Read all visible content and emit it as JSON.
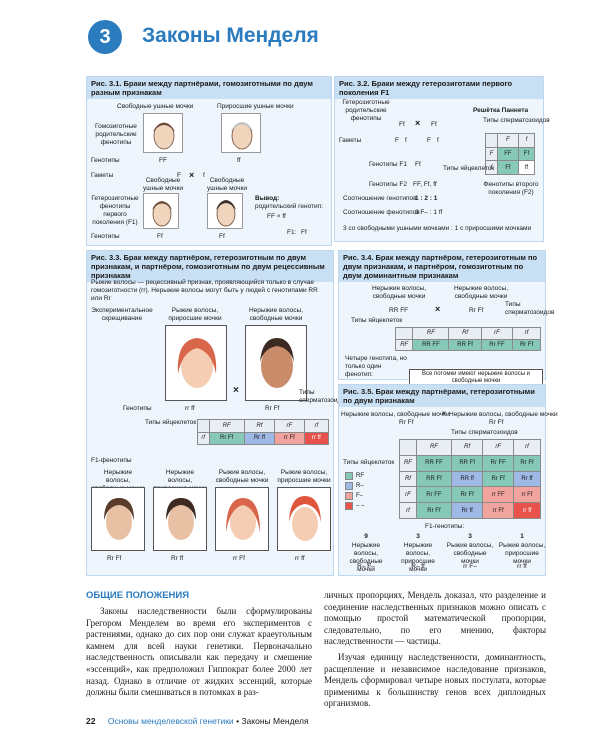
{
  "chapter": {
    "number": "3",
    "title": "Законы Менделя"
  },
  "fig31": {
    "title": "Рис. 3.1. Браки между партнёрами, гомозиготными по двум разным признакам",
    "free_lobes": "Свободные ушные мочки",
    "attached_lobes": "Приросшие ушные мочки",
    "homo_phenotypes": "Гомозиготные родительские фенотипы",
    "genotypes": "Генотипы",
    "gametes": "Гаметы",
    "f1_phenotypes": "Гетерозиготные фенотипы первого поколения (F1)",
    "genotypes_bottom": "Генотипы",
    "FF": "FF",
    "ff": "ff",
    "F": "F",
    "f": "f",
    "cross": "×",
    "free_lobes_bottom": "Свободные ушные мочки",
    "conclusion_title": "Вывод:",
    "conclusion_text": "родительский генотип:",
    "conclusion_cross": "FF × ff",
    "f1_label": "F1:",
    "Ff": "Ff"
  },
  "fig32": {
    "title": "Рис. 3.2. Браки между гетерозиготами первого поколения F1",
    "hetero_phenotypes": "Гетерозиготные родительские фенотипы",
    "gametes": "Гаметы",
    "punnett": "Решётка Паннета",
    "sperm_types": "Типы сперматозоидов",
    "egg_types": "Типы яйцеклеток",
    "f2_phenotypes": "Фенотипы второго поколения (F2)",
    "genotypes_f1": "Генотипы F1",
    "genotypes_f2": "Генотипы F2",
    "f2_genotypes": "FF, Ff, ff",
    "genotype_ratio_label": "Соотношение генотипов",
    "genotype_ratio": "1 : 2 : 1",
    "phenotype_ratio_label": "Соотношение фенотипов",
    "phenotype_ratio": "3 F– : 1 ff",
    "summary": "3 со свободными ушными мочками : 1 с приросшими мочками",
    "Ff": "Ff",
    "F": "F",
    "f": "f",
    "cross": "×",
    "grid": [
      [
        "",
        "F",
        "f"
      ],
      [
        "F",
        "FF",
        "Ff"
      ],
      [
        "f",
        "Ff",
        "ff"
      ]
    ]
  },
  "fig33": {
    "title": "Рис. 3.3. Брак между партнёром, гетерозиготным по двум признакам, и партнёром, гомозиготным по двум рецессивным признакам",
    "desc": "Рыжие волосы — рецессивный признак, проявляющийся только в случае гомозиготности (rr). Нерыжие волосы могут быть у людей с генотипами RR или Rr",
    "exp_cross": "Экспериментальное скрещивание",
    "parent1": "Рыжие волосы, приросшие мочки",
    "parent2": "Нерыжие волосы, свободные мочки",
    "genotypes": "Генотипы",
    "sperm_types": "Типы сперматозоидов",
    "egg_types": "Типы яйцеклеток",
    "f1_phenotypes": "F1-фенотипы",
    "rrff": "rr ff",
    "RrFf": "Rr Ff",
    "cross": "×",
    "grid": [
      [
        "",
        "RF",
        "Rf",
        "rF",
        "rf"
      ],
      [
        "rf",
        "Rr Ff",
        "Rr ff",
        "rr Ff",
        "rr ff"
      ]
    ],
    "children": [
      {
        "label": "Нерыжие волосы, свободные мочки",
        "genotype": "Rr Ff"
      },
      {
        "label": "Нерыжие волосы, приросшие мочки",
        "genotype": "Rr ff"
      },
      {
        "label": "Рыжие волосы, свободные мочки",
        "genotype": "rr Ff"
      },
      {
        "label": "Рыжие волосы, приросшие мочки",
        "genotype": "rr ff"
      }
    ]
  },
  "fig34": {
    "title": "Рис. 3.4. Брак между партнёром, гетерозиготным по двум признакам, и партнёром, гомозиготным по двум доминантным признакам",
    "left": "Нерыжие волосы, свободные мочки",
    "right": "Нерыжие волосы, свободные мочки",
    "RRFF": "RR FF",
    "RrFf": "Rr Ff",
    "cross": "×",
    "egg_types": "Типы яйцеклеток",
    "sperm_types": "Типы сперматозоидов",
    "grid": [
      [
        "",
        "RF",
        "Rf",
        "rF",
        "rf"
      ],
      [
        "RF",
        "RR FF",
        "RR Ff",
        "Rr FF",
        "Rr Ff"
      ]
    ],
    "four_genotypes": "Четыре генотипа, но только один фенотип:",
    "all_offspring": "Все потомки имеют нерыжие волосы и свободные мочки"
  },
  "fig35": {
    "title": "Рис. 3.5. Брак между партнёрами, гетерозиготными по двум признакам",
    "left": "Нерыжие волосы, свободные мочки",
    "right": "Нерыжие волосы, свободные мочки",
    "cross": "×",
    "RrFf": "Rr Ff",
    "sperm_types": "Типы сперматозоидов",
    "egg_types": "Типы яйцеклеток",
    "legend": [
      "RF",
      "R–",
      "F–",
      "– –"
    ],
    "grid": [
      [
        "",
        "RF",
        "Rf",
        "rF",
        "rf"
      ],
      [
        "RF",
        "RR FF",
        "RR Ff",
        "Rr FF",
        "Rr Ff"
      ],
      [
        "Rf",
        "RR Ff",
        "RR ff",
        "Rr Ff",
        "Rr ff"
      ],
      [
        "rF",
        "Rr FF",
        "Rr Ff",
        "rr FF",
        "rr Ff"
      ],
      [
        "rf",
        "Rr Ff",
        "Rr ff",
        "rr Ff",
        "rr ff"
      ]
    ],
    "f1_genotypes": "F1-генотипы:",
    "ratio": [
      {
        "n": "9",
        "label": "Нерыжие волосы, свободные мочки",
        "g": "R– F–"
      },
      {
        "n": "3",
        "label": "Нерыжие волосы, приросшие мочки",
        "g": "R– ff"
      },
      {
        "n": "3",
        "label": "Рыжие волосы, свободные мочки",
        "g": "rr F–"
      },
      {
        "n": "1",
        "label": "Рыжие волосы, приросшие мочки",
        "g": "rr ff"
      }
    ]
  },
  "section": {
    "title": "ОБЩИЕ ПОЛОЖЕНИЯ",
    "p1": "Законы наследственности были сформулированы Грегором Менделем во время его экспериментов с растениями, однако до сих пор они служат краеугольным камнем для всей науки генетики. Первоначально наследственность описывали как передачу и смешение «эссенций», как предположил Гиппократ более 2000 лет назад. Однако в отличие от жидких эссенций, которые должны были смешиваться в потомках в раз-",
    "p2": "личных пропорциях, Мендель доказал, что разделение и соединение наследственных признаков можно описать с помощью простой математической пропорции, следовательно, по его мнению, факторы наследственности — частицы.",
    "p3": "Изучая единицу наследственности, доминантность, расщепление и независимое наследование признаков, Мендель сформировал четыре новых постулата, которые применимы к большинству генов всех диплоидных организмов."
  },
  "footer": {
    "page": "22",
    "book": "Основы менделевской генетики",
    "bullet": "•",
    "chapter": "Законы Менделя"
  }
}
